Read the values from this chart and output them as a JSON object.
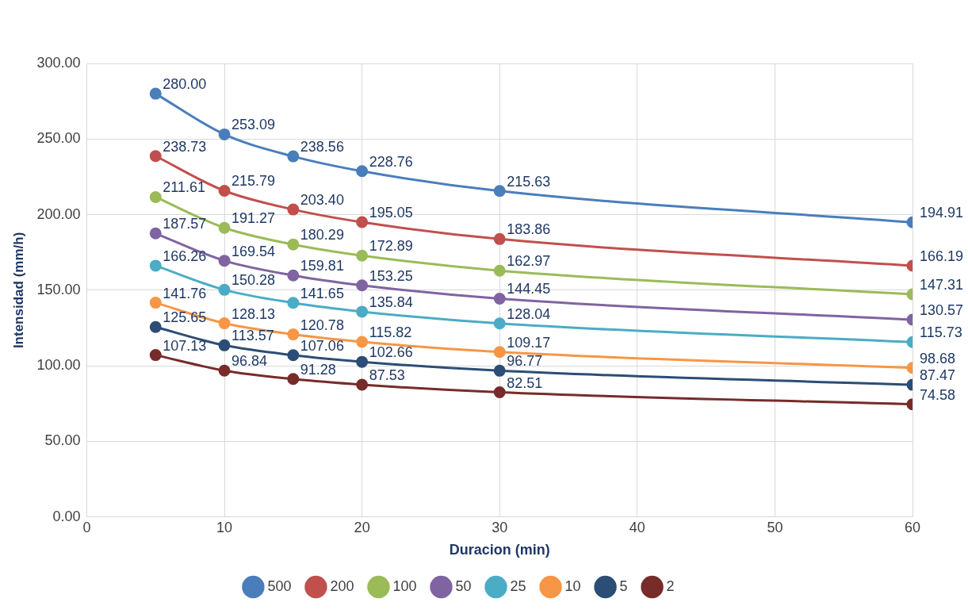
{
  "chart_data": {
    "type": "line",
    "xlabel": "Duracion (min)",
    "ylabel": "Intensidad (mm/h)",
    "x": [
      5,
      10,
      15,
      20,
      30,
      60
    ],
    "xlim": [
      0,
      60
    ],
    "xticks": [
      0,
      10,
      20,
      30,
      40,
      50,
      60
    ],
    "ylim": [
      0,
      300
    ],
    "yticks": [
      {
        "value": 0,
        "label": "0.00"
      },
      {
        "value": 50,
        "label": "50.00"
      },
      {
        "value": 100,
        "label": "100.00"
      },
      {
        "value": 150,
        "label": "150.00"
      },
      {
        "value": 200,
        "label": "200.00"
      },
      {
        "value": 250,
        "label": "250.00"
      },
      {
        "value": 300,
        "label": "300.00"
      }
    ],
    "grid": true,
    "legend": "bottom",
    "marker": "circle",
    "line_style": "solid",
    "series": [
      {
        "name": "500",
        "color": "#4a7ebb",
        "values": [
          280.0,
          253.09,
          238.56,
          228.76,
          215.63,
          194.91
        ],
        "value_labels": [
          "280.00",
          "253.09",
          "238.56",
          "228.76",
          "215.63",
          "194.91"
        ]
      },
      {
        "name": "200",
        "color": "#c0504d",
        "values": [
          238.73,
          215.79,
          203.4,
          195.05,
          183.86,
          166.19
        ],
        "value_labels": [
          "238.73",
          "215.79",
          "203.40",
          "195.05",
          "183.86",
          "166.19"
        ]
      },
      {
        "name": "100",
        "color": "#9bbb59",
        "values": [
          211.61,
          191.27,
          180.29,
          172.89,
          162.97,
          147.31
        ],
        "value_labels": [
          "211.61",
          "191.27",
          "180.29",
          "172.89",
          "162.97",
          "147.31"
        ]
      },
      {
        "name": "50",
        "color": "#8064a2",
        "values": [
          187.57,
          169.54,
          159.81,
          153.25,
          144.45,
          130.57
        ],
        "value_labels": [
          "187.57",
          "169.54",
          "159.81",
          "153.25",
          "144.45",
          "130.57"
        ]
      },
      {
        "name": "25",
        "color": "#4bacc6",
        "values": [
          166.26,
          150.28,
          141.65,
          135.84,
          128.04,
          115.73
        ],
        "value_labels": [
          "166.26",
          "150.28",
          "141.65",
          "135.84",
          "128.04",
          "115.73"
        ]
      },
      {
        "name": "10",
        "color": "#f79646",
        "values": [
          141.76,
          128.13,
          120.78,
          115.82,
          109.17,
          98.68
        ],
        "value_labels": [
          "141.76",
          "128.13",
          "120.78",
          "115.82",
          "109.17",
          "98.68"
        ]
      },
      {
        "name": "5",
        "color": "#2c4d75",
        "values": [
          125.65,
          113.57,
          107.06,
          102.66,
          96.77,
          87.47
        ],
        "value_labels": [
          "125.65",
          "113.57",
          "107.06",
          "102.66",
          "96.77",
          "87.47"
        ]
      },
      {
        "name": "2",
        "color": "#772c2a",
        "values": [
          107.13,
          96.84,
          91.28,
          87.53,
          82.51,
          74.58
        ],
        "value_labels": [
          "107.13",
          "96.84",
          "91.28",
          "87.53",
          "82.51",
          "74.58"
        ]
      }
    ]
  }
}
